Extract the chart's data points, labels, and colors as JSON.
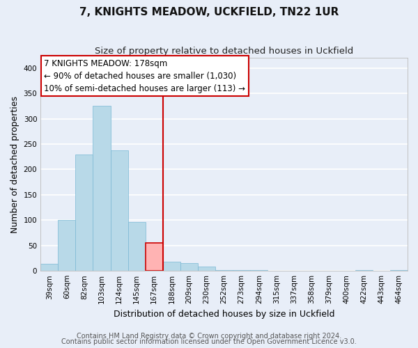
{
  "title": "7, KNIGHTS MEADOW, UCKFIELD, TN22 1UR",
  "subtitle": "Size of property relative to detached houses in Uckfield",
  "xlabel": "Distribution of detached houses by size in Uckfield",
  "ylabel": "Number of detached properties",
  "bar_color": "#b8d9e8",
  "bar_edge_color": "#7ab8d4",
  "highlight_bar_color": "#ffb3b3",
  "highlight_bar_edge_color": "#cc0000",
  "highlight_color": "#cc0000",
  "bin_labels": [
    "39sqm",
    "60sqm",
    "82sqm",
    "103sqm",
    "124sqm",
    "145sqm",
    "167sqm",
    "188sqm",
    "209sqm",
    "230sqm",
    "252sqm",
    "273sqm",
    "294sqm",
    "315sqm",
    "337sqm",
    "358sqm",
    "379sqm",
    "400sqm",
    "422sqm",
    "443sqm",
    "464sqm"
  ],
  "bar_heights": [
    14,
    101,
    230,
    325,
    238,
    96,
    55,
    18,
    15,
    8,
    2,
    1,
    1,
    0,
    0,
    0,
    0,
    0,
    2,
    0,
    2
  ],
  "highlight_bar_index": 6,
  "vline_x": 7.0,
  "ylim": [
    0,
    420
  ],
  "yticks": [
    0,
    50,
    100,
    150,
    200,
    250,
    300,
    350,
    400
  ],
  "annotation_title": "7 KNIGHTS MEADOW: 178sqm",
  "annotation_line1": "← 90% of detached houses are smaller (1,030)",
  "annotation_line2": "10% of semi-detached houses are larger (113) →",
  "footer_line1": "Contains HM Land Registry data © Crown copyright and database right 2024.",
  "footer_line2": "Contains public sector information licensed under the Open Government Licence v3.0.",
  "background_color": "#e8eef8",
  "plot_bg_color": "#e8eef8",
  "grid_color": "#ffffff",
  "title_fontsize": 11,
  "subtitle_fontsize": 9.5,
  "axis_label_fontsize": 9,
  "tick_fontsize": 7.5,
  "annotation_fontsize": 8.5,
  "footer_fontsize": 7
}
